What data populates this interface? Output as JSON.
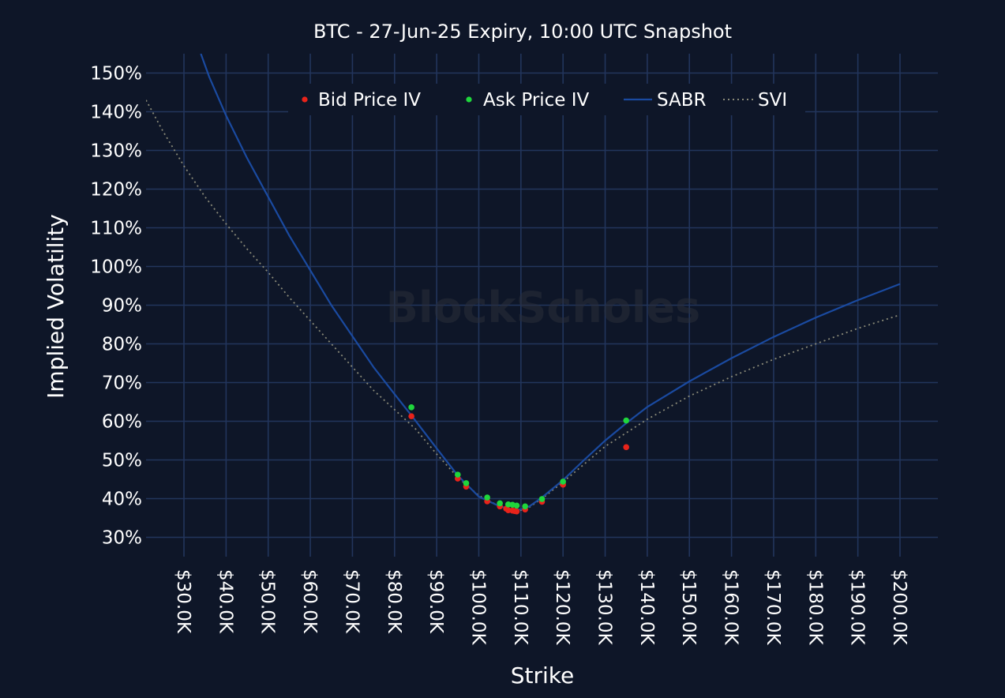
{
  "chart_data": {
    "type": "scatter",
    "title": "BTC - 27-Jun-25 Expiry, 10:00 UTC Snapshot",
    "xlabel": "Strike",
    "ylabel": "Implied Volatility",
    "watermark": "BlockScholes",
    "xlim": [
      21000,
      209000
    ],
    "ylim": [
      25,
      155
    ],
    "grid": true,
    "legend_position": "top-center",
    "x_ticks": [
      30000,
      40000,
      50000,
      60000,
      70000,
      80000,
      90000,
      100000,
      110000,
      120000,
      130000,
      140000,
      150000,
      160000,
      170000,
      180000,
      190000,
      200000
    ],
    "x_tick_labels": [
      "$30.0K",
      "$40.0K",
      "$50.0K",
      "$60.0K",
      "$70.0K",
      "$80.0K",
      "$90.0K",
      "$100.0K",
      "$110.0K",
      "$120.0K",
      "$130.0K",
      "$140.0K",
      "$150.0K",
      "$160.0K",
      "$170.0K",
      "$180.0K",
      "$190.0K",
      "$200.0K"
    ],
    "y_ticks": [
      30,
      40,
      50,
      60,
      70,
      80,
      90,
      100,
      110,
      120,
      130,
      140,
      150
    ],
    "y_tick_labels": [
      "30%",
      "40%",
      "50%",
      "60%",
      "70%",
      "80%",
      "90%",
      "100%",
      "110%",
      "120%",
      "130%",
      "140%",
      "150%"
    ],
    "colors": {
      "background": "#0e1628",
      "grid": "#22355c",
      "bid": "#e8231a",
      "ask": "#1fd63c",
      "sabr": "#1a4aa0",
      "svi": "#8a8a78"
    },
    "series": [
      {
        "name": "Bid Price IV",
        "type": "scatter",
        "x": [
          84000,
          95000,
          97000,
          102000,
          105000,
          106500,
          107000,
          108000,
          108500,
          109000,
          111000,
          115000,
          120000,
          135000
        ],
        "y": [
          61.3,
          45.2,
          43.1,
          39.3,
          38.0,
          37.4,
          37.0,
          36.9,
          36.8,
          36.7,
          37.2,
          39.2,
          43.6,
          53.3
        ]
      },
      {
        "name": "Ask Price IV",
        "type": "scatter",
        "x": [
          84000,
          95000,
          97000,
          102000,
          105000,
          107000,
          108000,
          109000,
          111000,
          115000,
          120000,
          135000
        ],
        "y": [
          63.6,
          46.2,
          44.0,
          40.3,
          38.8,
          38.5,
          38.4,
          38.2,
          38.0,
          39.9,
          44.4,
          60.2
        ]
      },
      {
        "name": "SABR",
        "type": "line",
        "x": [
          34000,
          36000,
          40000,
          45000,
          50000,
          55000,
          60000,
          65000,
          70000,
          75000,
          80000,
          84000,
          90000,
          95000,
          100000,
          105000,
          108000,
          110000,
          112000,
          115000,
          120000,
          125000,
          130000,
          135000,
          140000,
          150000,
          160000,
          170000,
          180000,
          190000,
          200000
        ],
        "y": [
          155,
          149,
          139,
          128,
          118,
          108,
          99,
          90,
          82,
          74,
          67,
          61.5,
          53,
          46,
          40.5,
          38.0,
          37.2,
          37.2,
          38.0,
          40.3,
          44.8,
          50,
          55,
          59.5,
          63.7,
          70.3,
          76.3,
          81.8,
          86.8,
          91.3,
          95.5
        ]
      },
      {
        "name": "SVI",
        "type": "line",
        "x": [
          21000,
          25000,
          30000,
          35000,
          40000,
          45000,
          50000,
          55000,
          60000,
          65000,
          70000,
          75000,
          80000,
          85000,
          90000,
          95000,
          100000,
          105000,
          108000,
          110000,
          112000,
          115000,
          120000,
          130000,
          140000,
          150000,
          160000,
          170000,
          180000,
          190000,
          200000
        ],
        "y": [
          143,
          135,
          126,
          118,
          111,
          104.5,
          98.5,
          92,
          86,
          80,
          74,
          68,
          63,
          58,
          51.5,
          45.5,
          40.8,
          38.0,
          37.0,
          37.0,
          37.8,
          40.0,
          44.3,
          53.5,
          60.5,
          66.5,
          71.5,
          76.0,
          80.0,
          84.0,
          87.5
        ]
      }
    ]
  }
}
